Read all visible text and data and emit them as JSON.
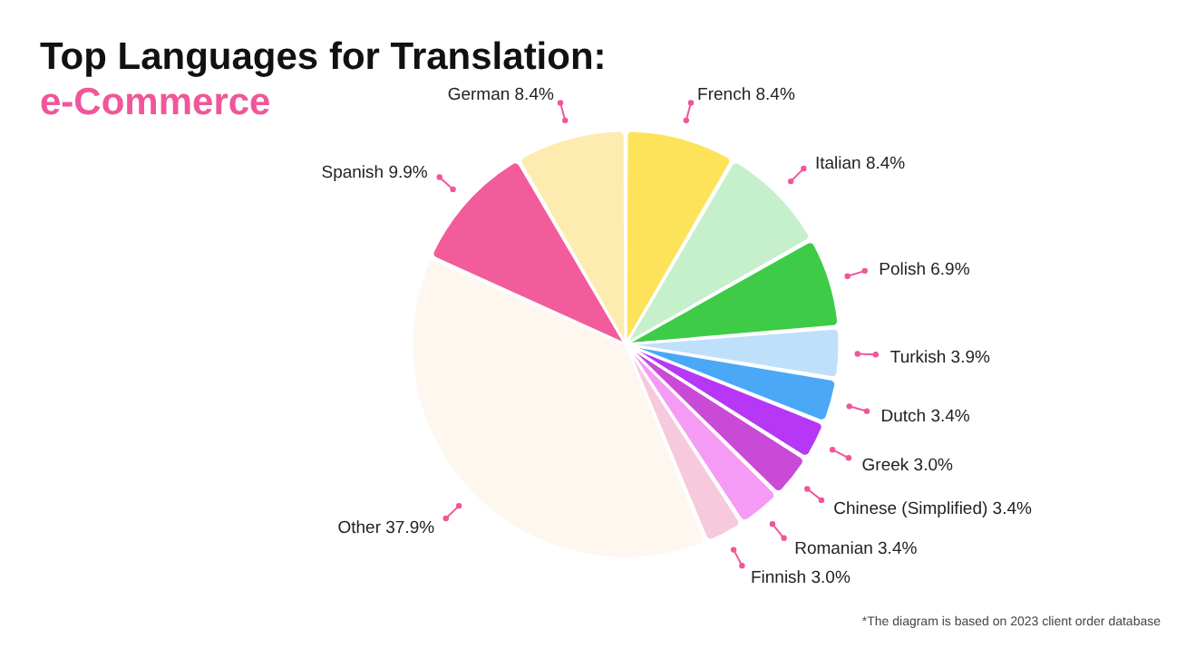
{
  "chart_data": {
    "type": "pie",
    "title": "Top Languages for Translation:",
    "subtitle": "e-Commerce",
    "categories": [
      "French",
      "Italian",
      "Polish",
      "Turkish",
      "Dutch",
      "Greek",
      "Chinese (Simplified)",
      "Romanian",
      "Finnish",
      "Other",
      "Spanish",
      "German"
    ],
    "values": [
      8.4,
      8.4,
      6.9,
      3.9,
      3.4,
      3.0,
      3.4,
      3.4,
      3.0,
      37.9,
      9.9,
      8.4
    ],
    "value_labels": [
      "8.4%",
      "8.4%",
      "6.9%",
      "3.9%",
      "3.4%",
      "3.0%",
      "3.4%",
      "3.4%",
      "3.0%",
      "37.9%",
      "9.9%",
      "8.4%"
    ],
    "colors": [
      "#fde35a",
      "#c5f0cb",
      "#3ecb47",
      "#bfe0fb",
      "#4aa8f7",
      "#b637f5",
      "#c94ad6",
      "#f59af5",
      "#f7c9dc",
      "#fef7f0",
      "#f25c9a",
      "#fdebb0"
    ],
    "annotations": [
      "*The diagram is based on 2023 client order database"
    ]
  }
}
